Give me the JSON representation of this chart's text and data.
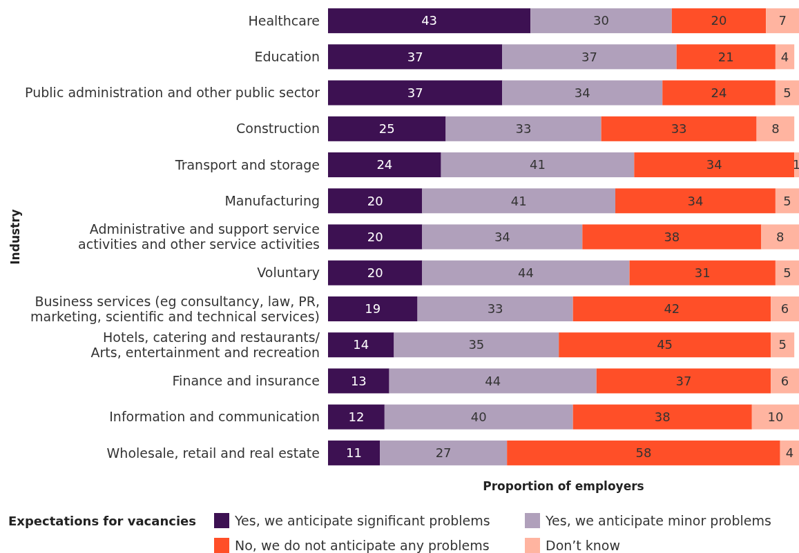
{
  "chart_data": {
    "type": "bar",
    "orientation": "horizontal",
    "stacked": true,
    "data_labels": true,
    "legend": "bottom",
    "legend_title": "Expectations for vacancies",
    "xlabel": "Proportion of employers",
    "ylabel": "Industry",
    "xlim": [
      0,
      100
    ],
    "tick_labels": "y",
    "categories": [
      "Healthcare",
      "Education",
      "Public administration and other public sector",
      "Construction",
      "Transport and storage",
      "Manufacturing",
      "Administrative and support service activities and other service activities",
      "Voluntary",
      "Business services (eg consultancy, law, PR, marketing, scientific and technical services)",
      "Hotels, catering and restaurants/ Arts, entertainment and recreation",
      "Finance and insurance",
      "Information and communication",
      "Wholesale, retail and real estate"
    ],
    "series": [
      {
        "name": "Yes, we anticipate significant problems",
        "color": "#3d1152",
        "values": [
          43,
          37,
          37,
          25,
          24,
          20,
          20,
          20,
          19,
          14,
          13,
          12,
          11
        ]
      },
      {
        "name": "Yes, we anticipate minor problems",
        "color": "#b0a0bb",
        "values": [
          30,
          37,
          34,
          33,
          41,
          41,
          34,
          44,
          33,
          35,
          44,
          40,
          27
        ]
      },
      {
        "name": "No, we do not anticipate any problems",
        "color": "#ff4f28",
        "values": [
          20,
          21,
          24,
          33,
          34,
          34,
          38,
          31,
          42,
          45,
          37,
          38,
          58
        ]
      },
      {
        "name": "Don’t know",
        "color": "#ffb4a0",
        "values": [
          7,
          4,
          5,
          8,
          1,
          5,
          8,
          5,
          6,
          5,
          6,
          10,
          4
        ]
      }
    ]
  }
}
